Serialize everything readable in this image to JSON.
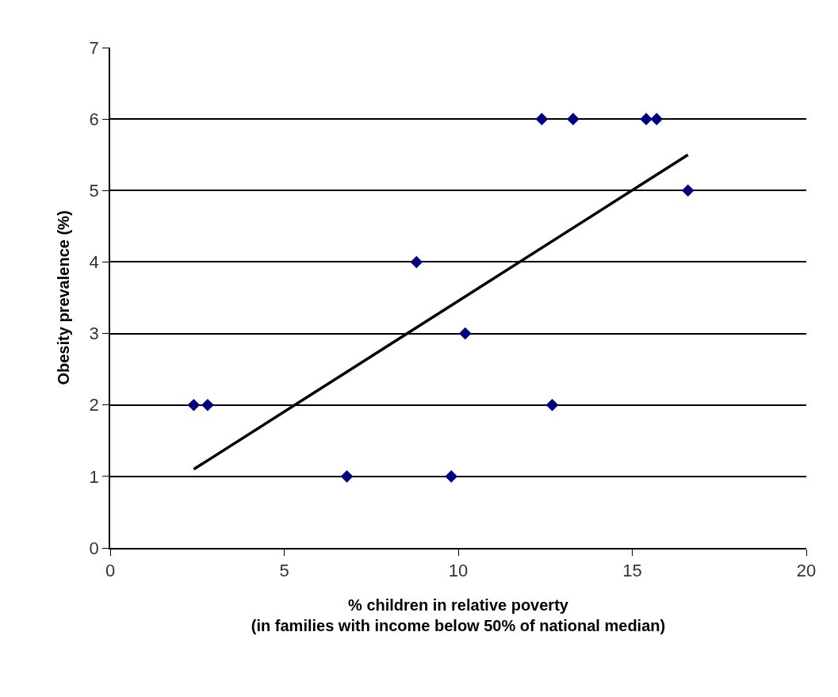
{
  "chart_data": {
    "type": "scatter",
    "xlabel": "% children in relative poverty\n(in families with income below 50% of national median)",
    "ylabel": "Obesity prevalence (%)",
    "series": [
      {
        "color": "#000080",
        "marker": "diamond",
        "x": [
          2.4,
          2.8,
          6.8,
          8.8,
          9.8,
          10.2,
          12.4,
          12.7,
          13.3,
          15.4,
          15.7,
          16.6
        ],
        "values": [
          2,
          2,
          1,
          4,
          1,
          3,
          6,
          2,
          6,
          6,
          6,
          5
        ]
      },
      {
        "type": "line",
        "color": "#000000",
        "line_style": "solid",
        "x": [
          2.4,
          16.6
        ],
        "values": [
          1.1,
          5.5
        ]
      }
    ],
    "xlim": [
      0,
      20
    ],
    "xticks": [
      0,
      5,
      10,
      15,
      20
    ],
    "ylim": [
      0,
      7
    ],
    "yticks": [
      0,
      1,
      2,
      3,
      4,
      5,
      6,
      7
    ],
    "grid": "y"
  }
}
